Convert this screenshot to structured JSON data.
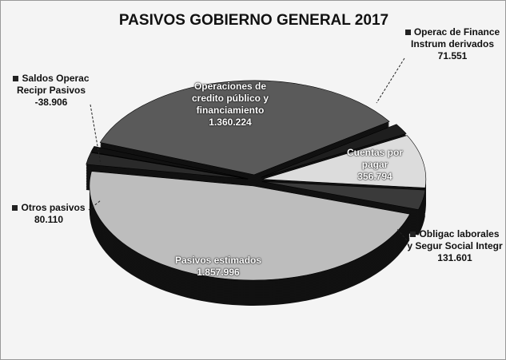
{
  "chart_data": {
    "type": "pie",
    "title": "PASIVOS GOBIERNO GENERAL 2017",
    "categories": [
      "Operaciones de credito público y financiamiento",
      "Operac de Finance Instrum derivados",
      "Cuentas por pagar",
      "Obligac laborales y Segur Social Integr",
      "Pasivos estimados",
      "Otros pasivos",
      "Saldos Operac Recipr Pasivos"
    ],
    "values": [
      1360224,
      71551,
      356794,
      131601,
      1857996,
      80110,
      -38906
    ],
    "value_labels": [
      "1.360.224",
      "71.551",
      "356.794",
      "131.601",
      "1.857.996",
      "80.110",
      "-38.906"
    ],
    "colors": [
      "#5a5a5a",
      "#1e1e1e",
      "#dcdcdc",
      "#3a3a3a",
      "#bdbdbd",
      "#2a2a2a",
      "#111111"
    ]
  }
}
